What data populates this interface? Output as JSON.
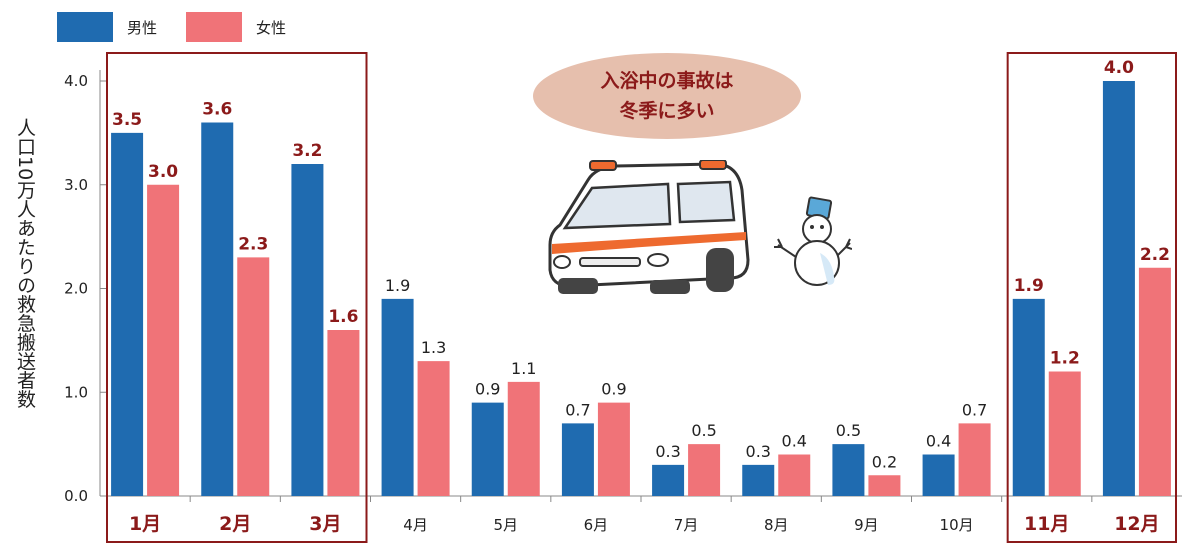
{
  "chart_data": {
    "type": "bar",
    "ylabel": "人口10万人あたりの救急搬送者数",
    "ylim": [
      0,
      4.0
    ],
    "yticks": [
      "0.0",
      "1.0",
      "2.0",
      "3.0",
      "4.0"
    ],
    "categories": [
      "1月",
      "2月",
      "3月",
      "4月",
      "5月",
      "6月",
      "7月",
      "8月",
      "9月",
      "10月",
      "11月",
      "12月"
    ],
    "series": [
      {
        "name": "男性",
        "color": "#1f6bb0",
        "values": [
          3.5,
          3.6,
          3.2,
          1.9,
          0.9,
          0.7,
          0.3,
          0.3,
          0.5,
          0.4,
          1.9,
          4.0
        ],
        "labels": [
          "3.5",
          "3.6",
          "3.2",
          "1.9",
          "0.9",
          "0.7",
          "0.3",
          "0.3",
          "0.5",
          "0.4",
          "1.9",
          "4.0"
        ]
      },
      {
        "name": "女性",
        "color": "#f07378",
        "values": [
          3.0,
          2.3,
          1.6,
          1.3,
          1.1,
          0.9,
          0.5,
          0.4,
          0.2,
          0.7,
          1.2,
          2.2
        ],
        "labels": [
          "3.0",
          "2.3",
          "1.6",
          "1.3",
          "1.1",
          "0.9",
          "0.5",
          "0.4",
          "0.2",
          "0.7",
          "1.2",
          "2.2"
        ]
      }
    ],
    "highlight_months": [
      "1月",
      "2月",
      "3月",
      "11月",
      "12月"
    ],
    "highlight_color": "#8b1a1a",
    "legend_position": "top-left",
    "grid": false
  },
  "callout": {
    "line1": "入浴中の事故は",
    "line2": "冬季に多い"
  },
  "illustrations": [
    "ambulance-icon",
    "snowman-icon"
  ]
}
